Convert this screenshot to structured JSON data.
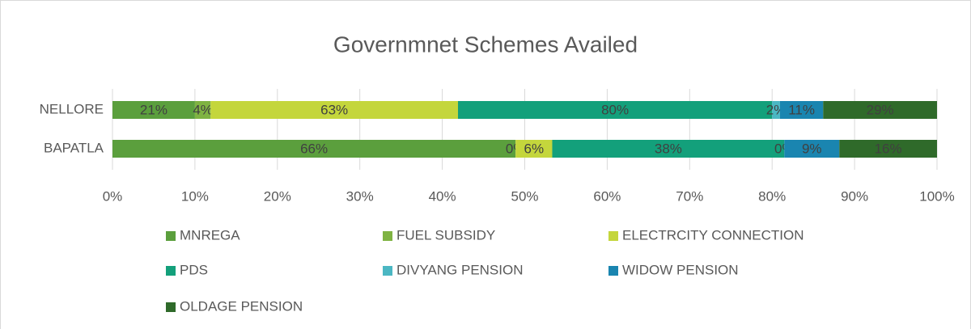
{
  "chart_data": {
    "type": "bar",
    "orientation": "horizontal",
    "stacking": "percent",
    "title": "Governmnet Schemes Availed",
    "categories": [
      "NELLORE",
      "BAPATLA"
    ],
    "series": [
      {
        "name": "MNREGA",
        "color": "#5b9f3d",
        "values": [
          21,
          66
        ],
        "value_labels": [
          "21%",
          "66%"
        ]
      },
      {
        "name": "FUEL SUBSIDY",
        "color": "#7fb342",
        "values": [
          4,
          0
        ],
        "value_labels": [
          "4%",
          "0%"
        ]
      },
      {
        "name": "ELECTRCITY CONNECTION",
        "color": "#c4d63c",
        "values": [
          63,
          6
        ],
        "value_labels": [
          "63%",
          "6%"
        ]
      },
      {
        "name": "PDS",
        "color": "#13a07b",
        "values": [
          80,
          38
        ],
        "value_labels": [
          "80%",
          "38%"
        ]
      },
      {
        "name": "DIVYANG PENSION",
        "color": "#4bb7c3",
        "values": [
          2,
          0
        ],
        "value_labels": [
          "2%",
          "0%"
        ]
      },
      {
        "name": "WIDOW PENSION",
        "color": "#1a85b0",
        "values": [
          11,
          9
        ],
        "value_labels": [
          "11%",
          "9%"
        ]
      },
      {
        "name": "OLDAGE PENSION",
        "color": "#2f6a2a",
        "values": [
          29,
          16
        ],
        "value_labels": [
          "29%",
          "16%"
        ]
      }
    ],
    "xlim": [
      0,
      100
    ],
    "xticks": [
      {
        "value": 0,
        "label": "0%"
      },
      {
        "value": 10,
        "label": "10%"
      },
      {
        "value": 20,
        "label": "20%"
      },
      {
        "value": 30,
        "label": "30%"
      },
      {
        "value": 40,
        "label": "40%"
      },
      {
        "value": 50,
        "label": "50%"
      },
      {
        "value": 60,
        "label": "60%"
      },
      {
        "value": 70,
        "label": "70%"
      },
      {
        "value": 80,
        "label": "80%"
      },
      {
        "value": 90,
        "label": "90%"
      },
      {
        "value": 100,
        "label": "100%"
      }
    ],
    "grid": true,
    "legend": "bottom"
  }
}
